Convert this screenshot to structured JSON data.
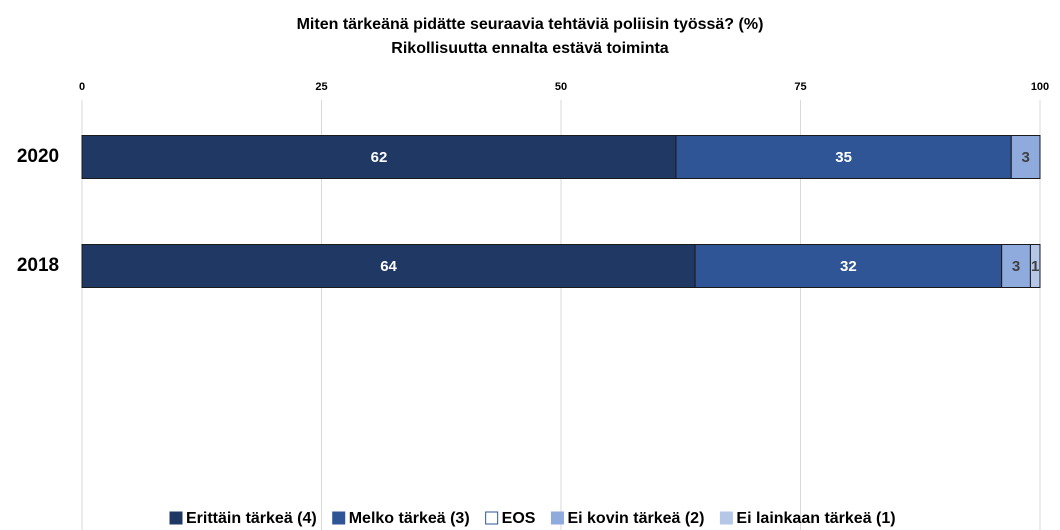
{
  "chart_data": {
    "type": "stacked-bar-horizontal",
    "title": "Miten tärkeänä pidätte seuraavia tehtäviä poliisin työssä? (%)",
    "subtitle": "Rikollisuutta ennalta estävä toiminta",
    "categories": [
      "2020",
      "2018"
    ],
    "series": [
      {
        "name": "Erittäin tärkeä (4)",
        "color": "#203864",
        "values": [
          62,
          64
        ]
      },
      {
        "name": "Melko tärkeä (3)",
        "color": "#2f5597",
        "values": [
          35,
          32
        ]
      },
      {
        "name": "EOS",
        "color": "#ffffff",
        "values": [
          null,
          null
        ]
      },
      {
        "name": "Ei kovin tärkeä (2)",
        "color": "#8faadc",
        "values": [
          3,
          3
        ]
      },
      {
        "name": "Ei lainkaan tärkeä (1)",
        "color": "#b4c7e7",
        "values": [
          null,
          1
        ]
      }
    ],
    "xlim": [
      0,
      100
    ],
    "xticks": [
      0,
      25,
      50,
      75,
      100
    ],
    "grid": true,
    "legend": "bottom"
  }
}
